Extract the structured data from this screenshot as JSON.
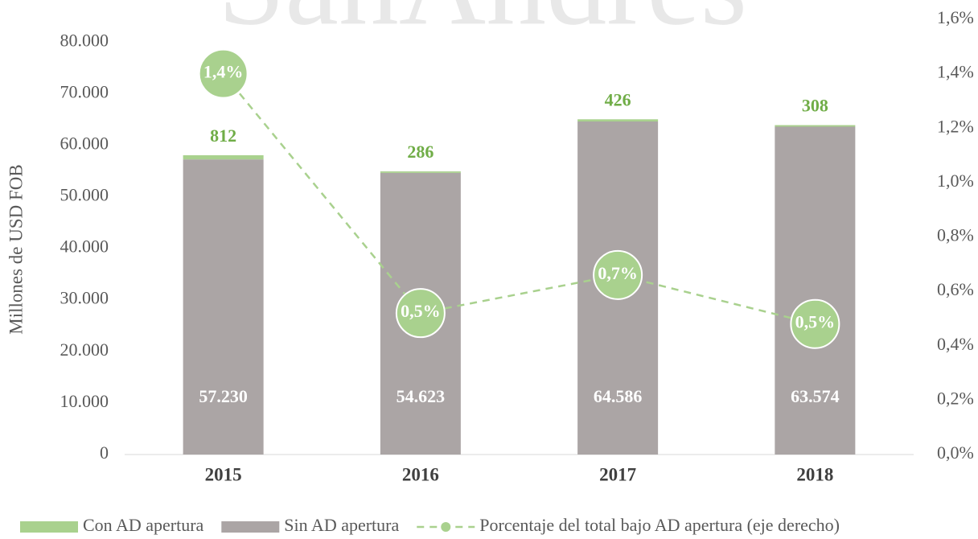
{
  "chart_data": {
    "type": "bar_line",
    "watermark": "SanAndres",
    "y_label": "Millones de USD FOB",
    "categories": [
      "2015",
      "2016",
      "2017",
      "2018"
    ],
    "series": [
      {
        "name": "Con AD apertura",
        "type": "bar",
        "color": "#a9d18e",
        "label_color": "#70ad47",
        "values": [
          812,
          286,
          426,
          308
        ]
      },
      {
        "name": "Sin AD apertura",
        "type": "bar",
        "color": "#aba5a5",
        "label_color": "#ffffff",
        "values": [
          57230,
          54623,
          64586,
          63574
        ],
        "value_labels": [
          "57.230",
          "54.623",
          "64.586",
          "63.574"
        ]
      },
      {
        "name": "Porcentaje del total bajo AD apertura (eje derecho)",
        "type": "line",
        "axis": "y2",
        "color": "#a9d18e",
        "values": [
          1.4,
          0.52,
          0.66,
          0.48
        ],
        "value_labels": [
          "1,4%",
          "0,5%",
          "0,7%",
          "0,5%"
        ]
      }
    ],
    "ylim": [
      0,
      84400
    ],
    "yticks": [
      0,
      {
        "value": 10000,
        "label": "10.000"
      },
      {
        "value": 20000,
        "label": "20.000"
      },
      {
        "value": 30000,
        "label": "30.000"
      },
      {
        "value": 40000,
        "label": "40.000"
      },
      {
        "value": 50000,
        "label": "50.000"
      },
      {
        "value": 60000,
        "label": "60.000"
      },
      {
        "value": 70000,
        "label": "70.000"
      },
      {
        "value": 80000,
        "label": "80.000"
      }
    ],
    "y2lim": [
      0,
      1.6
    ],
    "y2ticks": [
      {
        "value": 0,
        "label": "0,0%"
      },
      {
        "value": 0.2,
        "label": "0,2%"
      },
      {
        "value": 0.4,
        "label": "0,4%"
      },
      {
        "value": 0.6,
        "label": "0,6%"
      },
      {
        "value": 0.8,
        "label": "0,8%"
      },
      {
        "value": 1.0,
        "label": "1,0%"
      },
      {
        "value": 1.2,
        "label": "1,2%"
      },
      {
        "value": 1.4,
        "label": "1,4%"
      },
      {
        "value": 1.6,
        "label": "1,6%"
      }
    ],
    "legend": "bottom"
  }
}
